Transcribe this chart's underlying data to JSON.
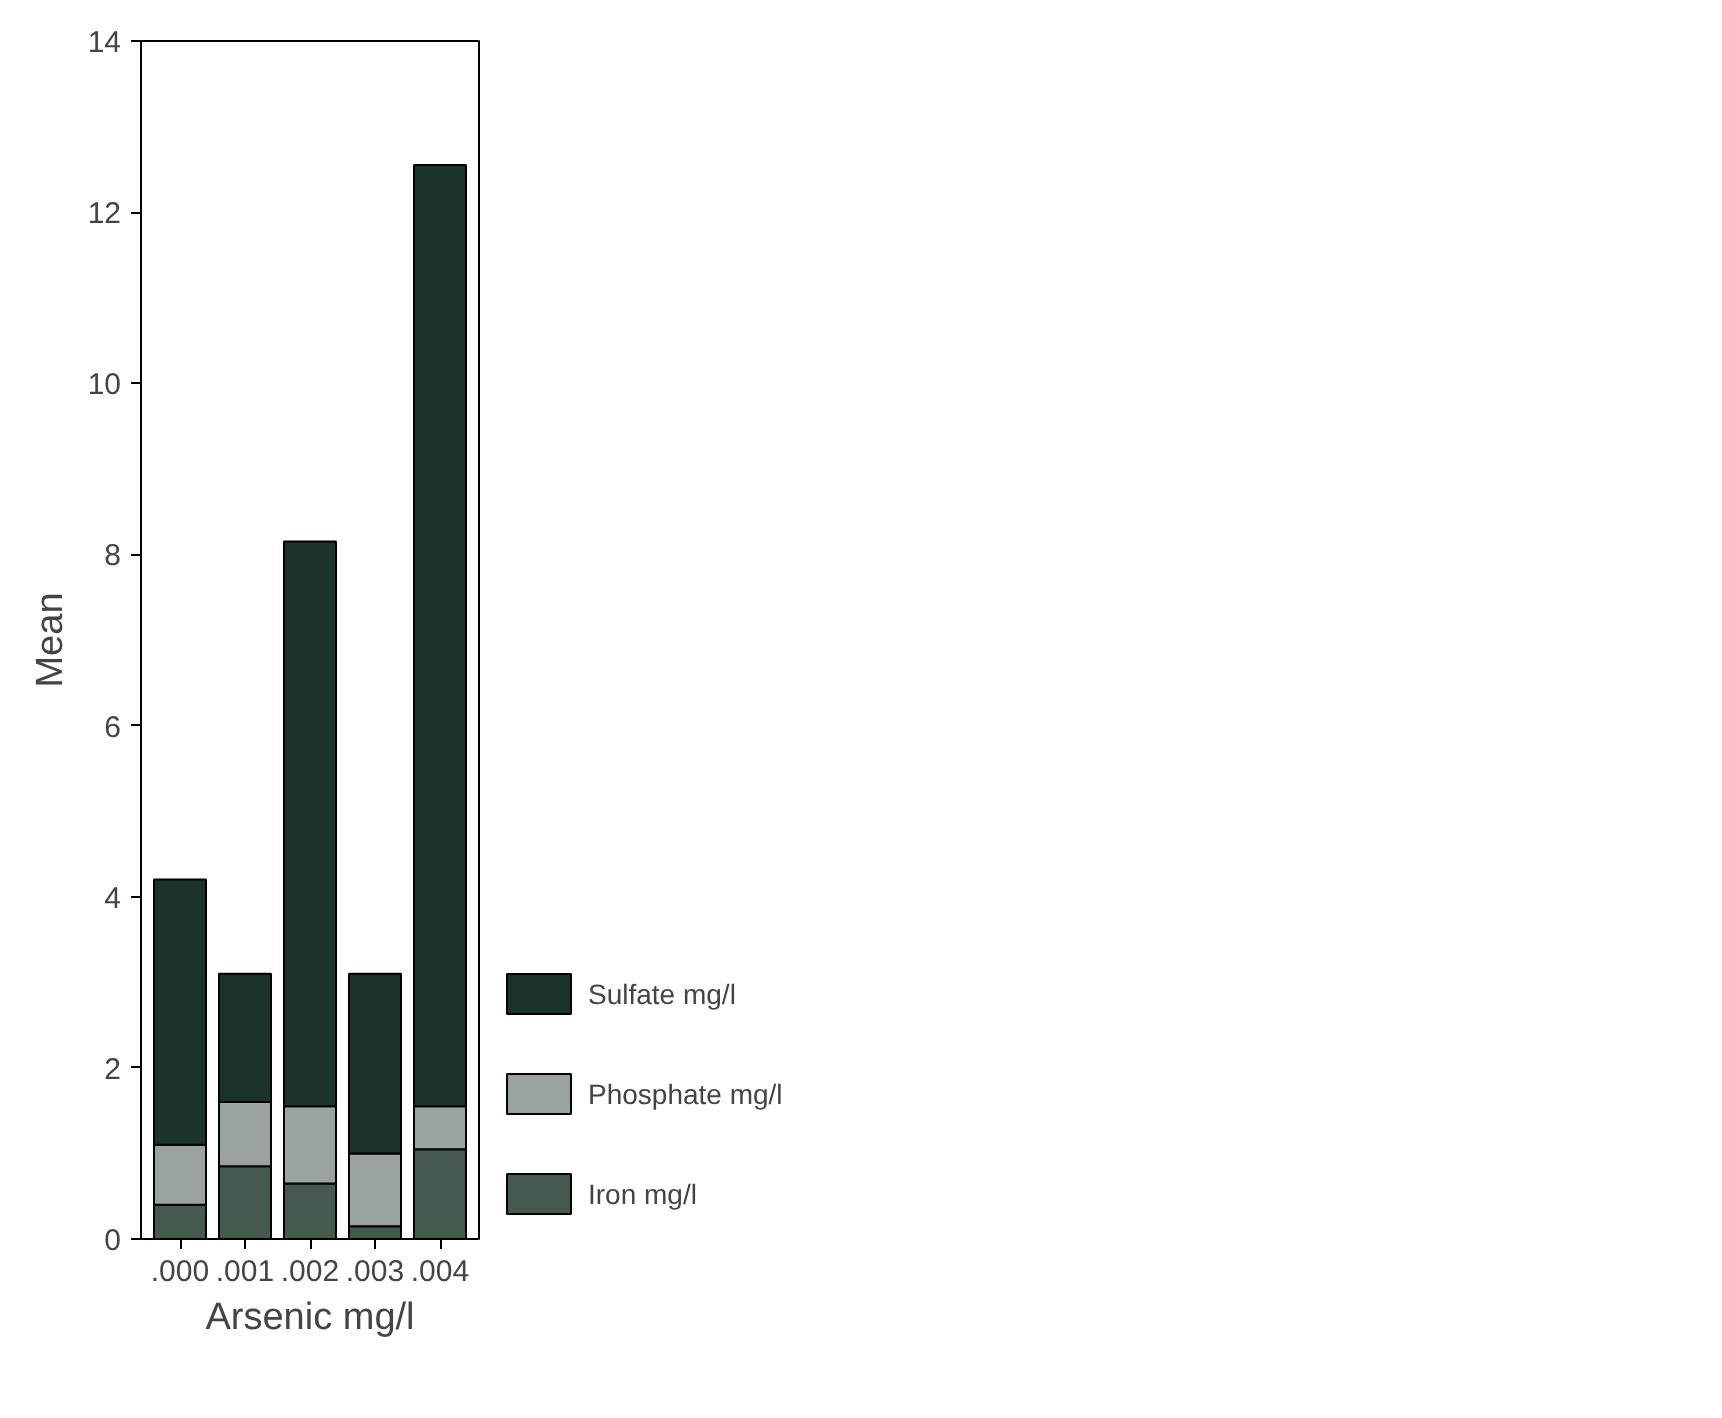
{
  "chart_data": {
    "type": "bar",
    "stacked": true,
    "xlabel": "Arsenic mg/l",
    "ylabel": "Mean",
    "categories": [
      ".000",
      ".001",
      ".002",
      ".003",
      ".004"
    ],
    "series": [
      {
        "name": "Iron mg/l",
        "color": "#45594f",
        "values": [
          0.4,
          0.85,
          0.65,
          0.15,
          1.05
        ]
      },
      {
        "name": "Phosphate mg/l",
        "color": "#9aa39e",
        "values": [
          0.7,
          0.75,
          0.9,
          0.85,
          0.5
        ]
      },
      {
        "name": "Sulfate mg/l",
        "color": "#1c3329",
        "values": [
          3.1,
          1.5,
          6.6,
          2.1,
          11.0
        ]
      }
    ],
    "ylim": [
      0,
      14
    ],
    "yticks": [
      0,
      2,
      4,
      6,
      8,
      10,
      12,
      14
    ],
    "grid": false,
    "legend": "right"
  }
}
